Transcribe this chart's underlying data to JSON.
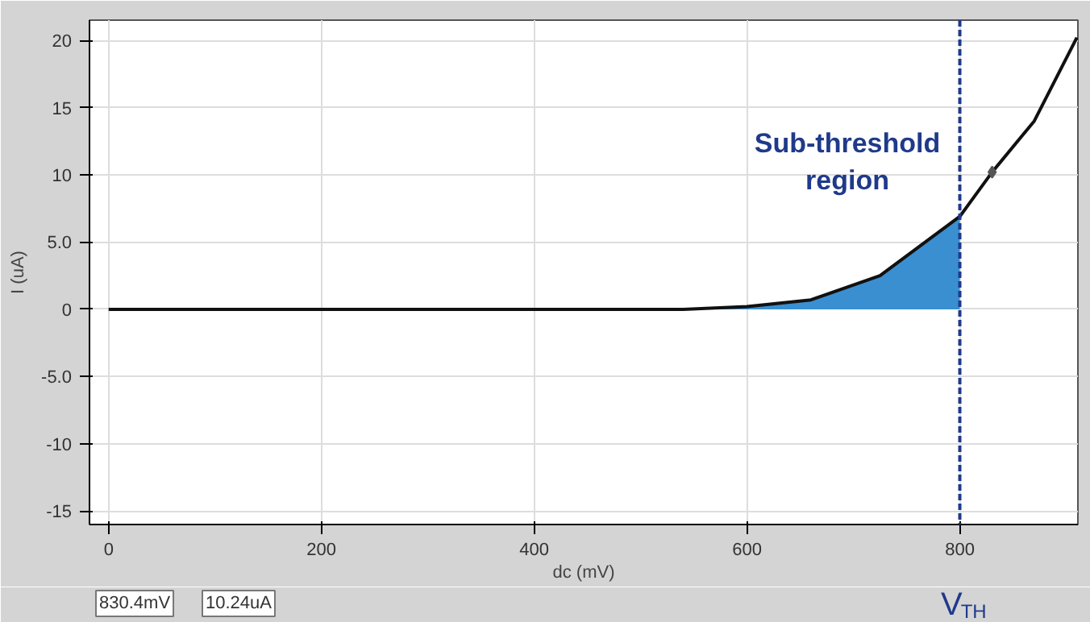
{
  "chart_data": {
    "type": "line",
    "xlabel": "dc (mV)",
    "ylabel": "I (uA)",
    "xlim": [
      -18,
      911
    ],
    "ylim": [
      -16,
      21.5
    ],
    "xticks": [
      0,
      200,
      400,
      600,
      800
    ],
    "yticks": [
      {
        "value": -15,
        "label": "-15"
      },
      {
        "value": -10,
        "label": "-10"
      },
      {
        "value": -5,
        "label": "-5.0"
      },
      0,
      {
        "value": 5,
        "label": "5.0"
      },
      10,
      15,
      20
    ],
    "grid": true,
    "series": [
      {
        "type": "area",
        "color": "#3a8fd0",
        "x": [
          540,
          600,
          660,
          725,
          800
        ],
        "values": [
          0,
          0.2,
          0.7,
          2.5,
          6.9
        ]
      },
      {
        "color": "#111111",
        "x": [
          0,
          540,
          600,
          660,
          725,
          800,
          830.4,
          870,
          910
        ],
        "values": [
          0,
          0,
          0.2,
          0.7,
          2.5,
          6.9,
          10.2,
          14,
          20.2
        ]
      },
      {
        "type": "scatter",
        "marker": "diamond",
        "color": "#555555",
        "x": [
          830.4
        ],
        "values": [
          10.2
        ]
      }
    ],
    "ref_lines": [
      {
        "axis": "x",
        "value": 800,
        "label": "V$_{TH}$",
        "color": "#1f3a8a",
        "line_style": "dashed"
      }
    ],
    "annotations": [
      "Sub-threshold\nregion",
      "830.4mV",
      "10.24uA"
    ]
  }
}
